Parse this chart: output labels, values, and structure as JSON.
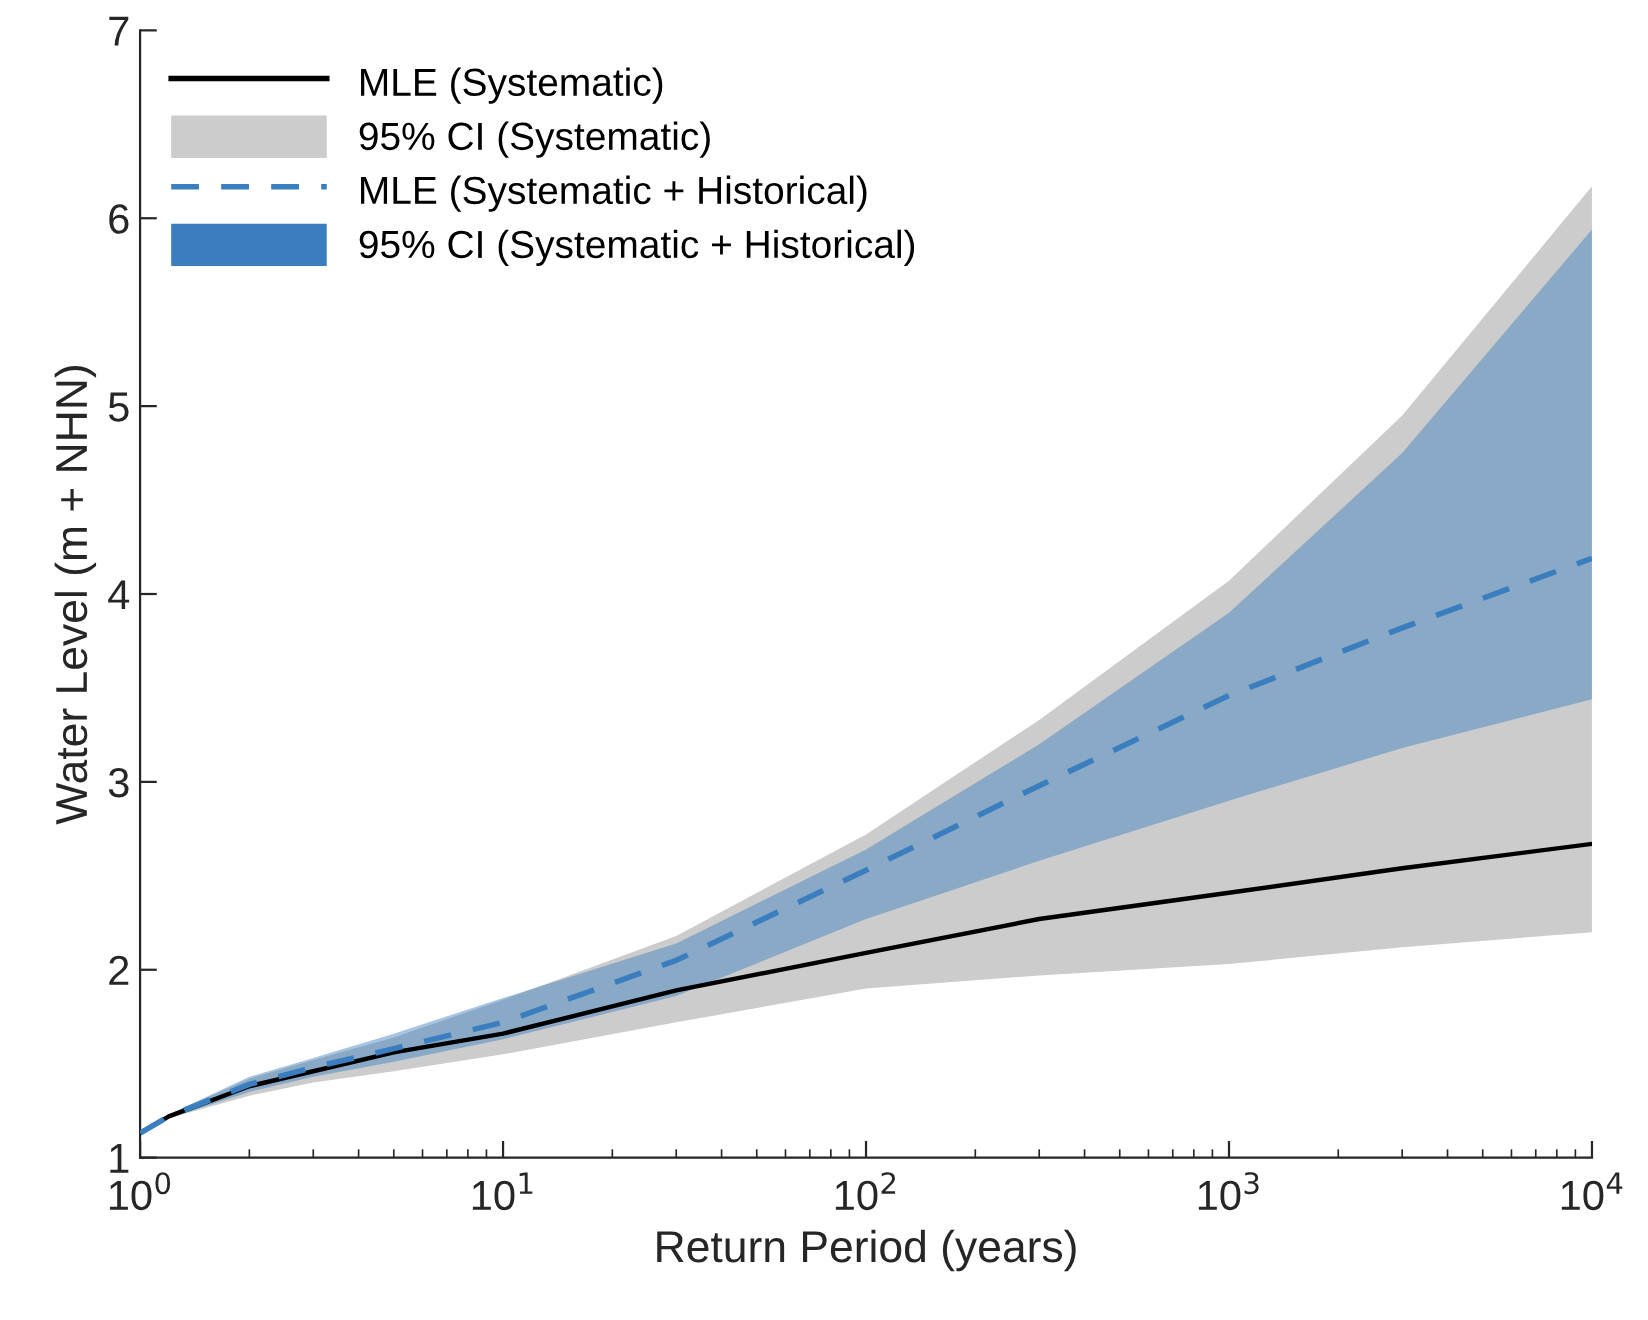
{
  "chart_data": {
    "type": "line",
    "xlabel": "Return Period (years)",
    "ylabel": "Water Level (m + NHN)",
    "log": "x",
    "xlim": [
      1,
      10000
    ],
    "ylim": [
      1,
      7
    ],
    "xticks": [
      {
        "value": 1,
        "label": "10$^{0}$"
      },
      {
        "value": 10,
        "label": "10$^{1}$"
      },
      {
        "value": 100,
        "label": "10$^{2}$"
      },
      {
        "value": 1000,
        "label": "10$^{3}$"
      },
      {
        "value": 10000,
        "label": "10$^{4}$"
      }
    ],
    "yticks": [
      1,
      2,
      3,
      4,
      5,
      6,
      7
    ],
    "grid": false,
    "legend": "top left",
    "x": [
      1,
      1.2,
      2,
      3,
      5,
      10,
      30,
      100,
      300,
      1000,
      3000,
      10000
    ],
    "series": [
      {
        "name": "MLE (Systematic)",
        "color": "#000000",
        "line_style": "solid",
        "values": [
          1.13,
          1.22,
          1.38,
          1.46,
          1.56,
          1.66,
          1.89,
          2.09,
          2.27,
          2.41,
          2.54,
          2.67
        ]
      },
      {
        "name": "95% CI (Systematic)",
        "type": "area",
        "color": "#cccccc",
        "values": [
          null,
          null,
          null,
          null,
          null,
          null,
          null,
          null,
          null,
          null,
          null,
          null
        ],
        "lower": [
          1.13,
          1.21,
          1.33,
          1.4,
          1.46,
          1.55,
          1.72,
          1.9,
          1.97,
          2.03,
          2.12,
          2.2
        ],
        "upper": [
          1.13,
          1.23,
          1.42,
          1.52,
          1.64,
          1.84,
          2.18,
          2.72,
          3.33,
          4.07,
          4.95,
          6.17
        ]
      },
      {
        "name": "MLE (Systematic + Historical)",
        "color": "#3a7ebf",
        "line_style": "dashed",
        "values": [
          1.13,
          1.22,
          1.39,
          1.48,
          1.58,
          1.72,
          2.05,
          2.53,
          2.98,
          3.46,
          3.82,
          4.19
        ]
      },
      {
        "name": "95% CI (Systematic + Historical)",
        "type": "area",
        "color": "#3a7ebf",
        "values": [
          null,
          null,
          null,
          null,
          null,
          null,
          null,
          null,
          null,
          null,
          null,
          null
        ],
        "lower": [
          1.13,
          1.21,
          1.35,
          1.43,
          1.51,
          1.63,
          1.86,
          2.27,
          2.58,
          2.9,
          3.18,
          3.44
        ],
        "upper": [
          1.13,
          1.23,
          1.43,
          1.53,
          1.66,
          1.85,
          2.14,
          2.64,
          3.2,
          3.9,
          4.75,
          5.94
        ]
      }
    ]
  }
}
